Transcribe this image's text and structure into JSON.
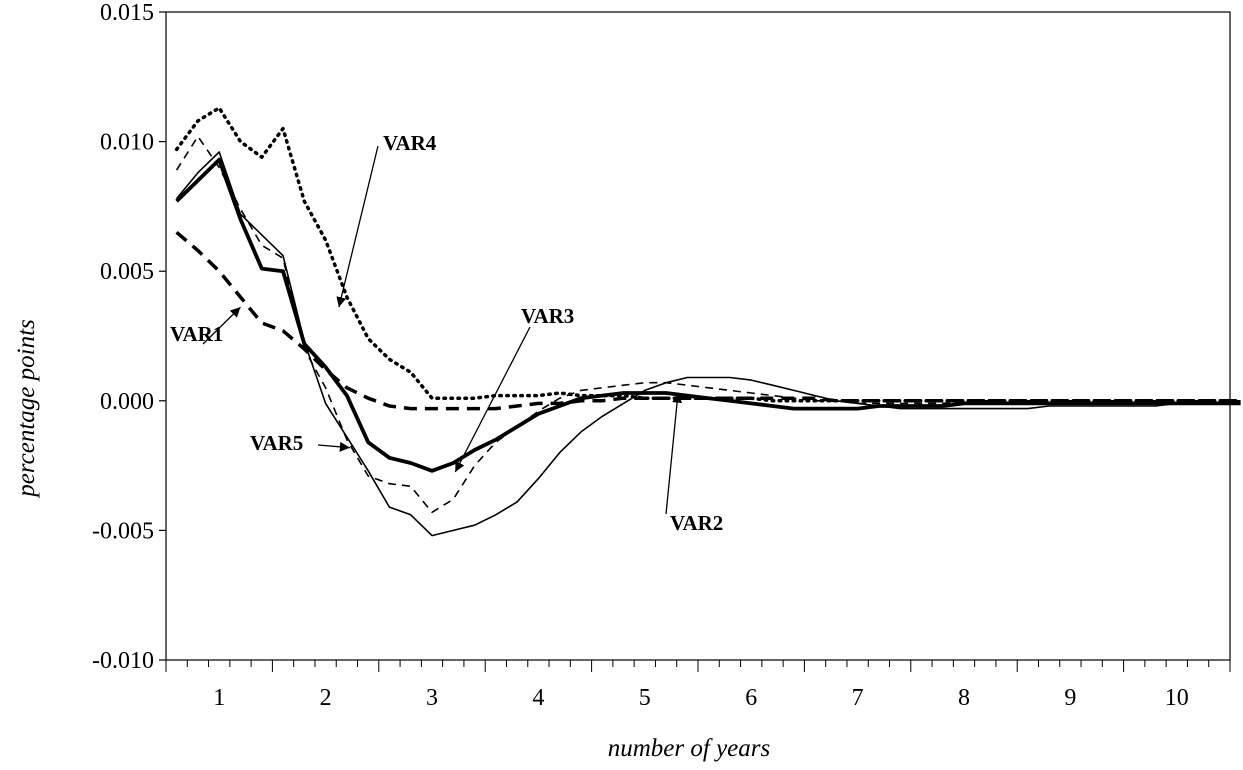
{
  "chart_data": {
    "type": "line",
    "title": "",
    "xlabel": "number of years",
    "ylabel": "percentage points",
    "ylim": [
      -0.01,
      0.015
    ],
    "xlim": [
      0.5,
      10.5
    ],
    "y_ticks": [
      "0.015",
      "0.010",
      "0.005",
      "0.000",
      "-0.005",
      "-0.010"
    ],
    "y_tick_values": [
      0.015,
      0.01,
      0.005,
      0.0,
      -0.005,
      -0.01
    ],
    "x_ticks": [
      "1",
      "2",
      "3",
      "4",
      "5",
      "6",
      "7",
      "8",
      "9",
      "10"
    ],
    "x_tick_values": [
      1,
      2,
      3,
      4,
      5,
      6,
      7,
      8,
      9,
      10
    ],
    "grid": false,
    "x": [
      0.6,
      0.8,
      1.0,
      1.2,
      1.4,
      1.6,
      1.8,
      2.0,
      2.2,
      2.4,
      2.6,
      2.8,
      3.0,
      3.2,
      3.4,
      3.6,
      3.8,
      4.0,
      4.2,
      4.4,
      4.6,
      4.8,
      5.0,
      5.2,
      5.4,
      5.6,
      5.8,
      6.0,
      6.2,
      6.4,
      6.6,
      6.8,
      7.0,
      7.2,
      7.4,
      7.6,
      7.8,
      8.0,
      8.2,
      8.4,
      8.6,
      8.8,
      9.0,
      9.2,
      9.4,
      9.6,
      9.8,
      10.0,
      10.2,
      10.4,
      10.6
    ],
    "series": [
      {
        "name": "VAR1",
        "style": "dashed-thick",
        "values": [
          0.0065,
          0.0058,
          0.005,
          0.004,
          0.003,
          0.0027,
          0.002,
          0.0012,
          0.0005,
          0.0001,
          -0.0002,
          -0.0003,
          -0.0003,
          -0.0003,
          -0.0003,
          -0.0003,
          -0.0002,
          -0.0001,
          -0.0001,
          0.0,
          0.0,
          0.0001,
          0.0001,
          0.0001,
          0.0001,
          0.0001,
          0.0001,
          0.0001,
          0.0001,
          0.0001,
          0.0001,
          0.0,
          0.0,
          0.0,
          0.0,
          0.0,
          0.0,
          0.0,
          0.0,
          0.0,
          0.0,
          0.0,
          0.0,
          0.0,
          0.0,
          0.0,
          0.0,
          0.0,
          0.0,
          0.0,
          0.0
        ]
      },
      {
        "name": "VAR2",
        "style": "solid-thin",
        "values": [
          0.0078,
          0.0088,
          0.0096,
          0.0072,
          0.0064,
          0.0056,
          0.0023,
          -0.0001,
          -0.0014,
          -0.0027,
          -0.0041,
          -0.0044,
          -0.0052,
          -0.005,
          -0.0048,
          -0.0044,
          -0.0039,
          -0.003,
          -0.002,
          -0.0012,
          -0.0006,
          -0.0001,
          0.0004,
          0.0007,
          0.0009,
          0.0009,
          0.0009,
          0.0008,
          0.0006,
          0.0004,
          0.0002,
          0.0,
          -0.0001,
          -0.0002,
          -0.0003,
          -0.0003,
          -0.0003,
          -0.0003,
          -0.0003,
          -0.0003,
          -0.0003,
          -0.0002,
          -0.0002,
          -0.0002,
          -0.0002,
          -0.0002,
          -0.0002,
          -0.0001,
          -0.0001,
          -0.0001,
          -0.0001
        ]
      },
      {
        "name": "VAR3",
        "style": "solid-thick",
        "values": [
          0.0077,
          0.0085,
          0.0093,
          0.007,
          0.0051,
          0.005,
          0.0022,
          0.0013,
          0.0002,
          -0.0016,
          -0.0022,
          -0.0024,
          -0.0027,
          -0.0024,
          -0.0019,
          -0.0015,
          -0.001,
          -0.0005,
          -0.0002,
          0.0001,
          0.0002,
          0.0003,
          0.0003,
          0.0003,
          0.0002,
          0.0001,
          0.0,
          -0.0001,
          -0.0002,
          -0.0003,
          -0.0003,
          -0.0003,
          -0.0003,
          -0.0002,
          -0.0002,
          -0.0002,
          -0.0002,
          -0.0001,
          -0.0001,
          -0.0001,
          -0.0001,
          -0.0001,
          -0.0001,
          -0.0001,
          -0.0001,
          -0.0001,
          -0.0001,
          -0.0001,
          -0.0001,
          -0.0001,
          -0.0001
        ]
      },
      {
        "name": "VAR4",
        "style": "dotted",
        "values": [
          0.0097,
          0.0108,
          0.0113,
          0.01,
          0.0094,
          0.0105,
          0.0077,
          0.0062,
          0.004,
          0.0024,
          0.0016,
          0.0011,
          0.0001,
          0.0001,
          0.0001,
          0.0002,
          0.0002,
          0.0002,
          0.0003,
          0.0002,
          0.0002,
          0.0002,
          0.0001,
          0.0001,
          0.0001,
          0.0001,
          0.0001,
          0.0001,
          0.0,
          0.0,
          0.0,
          0.0,
          0.0,
          0.0,
          0.0,
          0.0,
          0.0,
          0.0,
          0.0,
          0.0,
          0.0,
          0.0,
          0.0,
          0.0,
          0.0,
          0.0,
          0.0,
          0.0,
          0.0,
          0.0,
          0.0
        ]
      },
      {
        "name": "VAR5",
        "style": "dashed-thin",
        "values": [
          0.0089,
          0.0102,
          0.009,
          0.0074,
          0.006,
          0.0055,
          0.002,
          0.0005,
          -0.0015,
          -0.0029,
          -0.0032,
          -0.0033,
          -0.0043,
          -0.0038,
          -0.0025,
          -0.0016,
          -0.001,
          -0.0004,
          0.0001,
          0.0004,
          0.0005,
          0.0006,
          0.0007,
          0.0007,
          0.0006,
          0.0005,
          0.0004,
          0.0003,
          0.0002,
          0.0001,
          0.0,
          0.0,
          -0.0001,
          -0.0001,
          -0.0001,
          -0.0001,
          -0.0001,
          0.0,
          0.0,
          0.0,
          0.0,
          0.0,
          0.0,
          0.0,
          0.0,
          0.0,
          0.0,
          0.0,
          0.0,
          0.0,
          0.0
        ]
      }
    ],
    "annotations": [
      {
        "text": "VAR1",
        "series": "VAR1"
      },
      {
        "text": "VAR2",
        "series": "VAR2"
      },
      {
        "text": "VAR3",
        "series": "VAR3"
      },
      {
        "text": "VAR4",
        "series": "VAR4"
      },
      {
        "text": "VAR5",
        "series": "VAR5"
      }
    ]
  }
}
